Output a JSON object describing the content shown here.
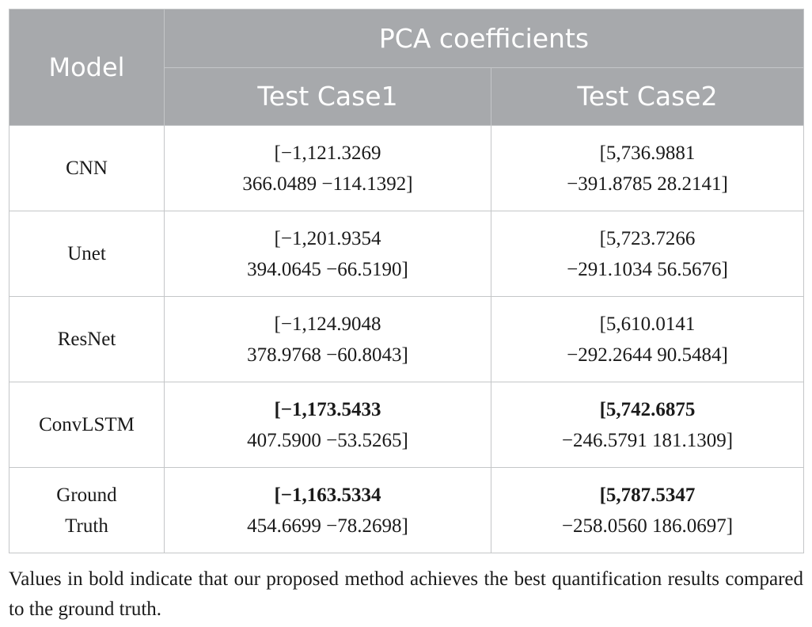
{
  "table": {
    "header": {
      "model": "Model",
      "group": "PCA coefficients",
      "case1": "Test Case1",
      "case2": "Test Case2"
    },
    "rows": [
      {
        "model": [
          "CNN"
        ],
        "case1": {
          "bold": "",
          "line1": "[−1,121.3269",
          "line2": "366.0489 −114.1392]"
        },
        "case2": {
          "bold": "",
          "line1": "[5,736.9881",
          "line2": "−391.8785 28.2141]"
        }
      },
      {
        "model": [
          "Unet"
        ],
        "case1": {
          "bold": "",
          "line1": "[−1,201.9354",
          "line2": "394.0645 −66.5190]"
        },
        "case2": {
          "bold": "",
          "line1": "[5,723.7266",
          "line2": "−291.1034 56.5676]"
        }
      },
      {
        "model": [
          "ResNet"
        ],
        "case1": {
          "bold": "",
          "line1": "[−1,124.9048",
          "line2": "378.9768 −60.8043]"
        },
        "case2": {
          "bold": "",
          "line1": "[5,610.0141",
          "line2": "−292.2644 90.5484]"
        }
      },
      {
        "model": [
          "ConvLSTM"
        ],
        "case1": {
          "bold": "[−1,173.5433",
          "line1": "",
          "line2": "407.5900 −53.5265]"
        },
        "case2": {
          "bold": "[5,742.6875",
          "line1": "",
          "line2": "−246.5791 181.1309]"
        }
      },
      {
        "model": [
          "Ground",
          "Truth"
        ],
        "case1": {
          "bold": "[−1,163.5334",
          "line1": "",
          "line2": "454.6699 −78.2698]"
        },
        "case2": {
          "bold": "[5,787.5347",
          "line1": "",
          "line2": "−258.0560 186.0697]"
        }
      }
    ]
  },
  "footnote": "Values in bold indicate that our proposed method achieves the best quantification results compared to the ground truth.",
  "colors": {
    "header_bg": "#a7a9ac",
    "header_text": "#ffffff",
    "border": "#c4c6c8"
  }
}
